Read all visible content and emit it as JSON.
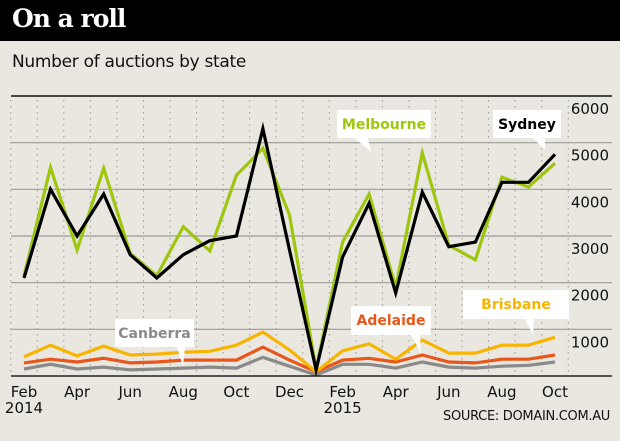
{
  "header": {
    "title": "On a roll"
  },
  "subtitle": "Number of auctions by state",
  "source": "SOURCE: DOMAIN.COM.AU",
  "chart_data": {
    "type": "line",
    "title": "Number of auctions by state",
    "xlabel": "",
    "ylabel": "",
    "ylim": [
      0,
      6000
    ],
    "yticks": [
      1000,
      2000,
      3000,
      4000,
      5000,
      6000
    ],
    "ytick_labels": [
      "1000",
      "2000",
      "3000",
      "4000",
      "5000",
      "6000"
    ],
    "x": [
      "Feb 2014",
      "Mar 2014",
      "Apr 2014",
      "May 2014",
      "Jun 2014",
      "Jul 2014",
      "Aug 2014",
      "Sep 2014",
      "Oct 2014",
      "Nov 2014",
      "Dec 2014",
      "Jan 2015",
      "Feb 2015",
      "Mar 2015",
      "Apr 2015",
      "May 2015",
      "Jun 2015",
      "Jul 2015",
      "Aug 2015",
      "Sep 2015",
      "Oct 2015"
    ],
    "xtick_labels": [
      {
        "index": 0,
        "line1": "Feb",
        "line2": "2014"
      },
      {
        "index": 2,
        "line1": "Apr",
        "line2": ""
      },
      {
        "index": 4,
        "line1": "Jun",
        "line2": ""
      },
      {
        "index": 6,
        "line1": "Aug",
        "line2": ""
      },
      {
        "index": 8,
        "line1": "Oct",
        "line2": ""
      },
      {
        "index": 10,
        "line1": "Dec",
        "line2": ""
      },
      {
        "index": 12,
        "line1": "Feb",
        "line2": "2015"
      },
      {
        "index": 14,
        "line1": "Apr",
        "line2": ""
      },
      {
        "index": 16,
        "line1": "Jun",
        "line2": ""
      },
      {
        "index": 18,
        "line1": "Aug",
        "line2": ""
      },
      {
        "index": 20,
        "line1": "Oct",
        "line2": ""
      }
    ],
    "grid": true,
    "series": [
      {
        "name": "Canberra",
        "color": "#8a8a8a",
        "values": [
          150,
          250,
          150,
          190,
          130,
          150,
          170,
          190,
          170,
          400,
          210,
          20,
          250,
          250,
          170,
          300,
          190,
          170,
          210,
          230,
          300
        ]
      },
      {
        "name": "Adelaide",
        "color": "#e8561a",
        "values": [
          280,
          360,
          300,
          380,
          280,
          300,
          340,
          340,
          340,
          620,
          340,
          90,
          340,
          380,
          300,
          450,
          300,
          280,
          360,
          360,
          450
        ]
      },
      {
        "name": "Brisbane",
        "color": "#f7b500",
        "values": [
          410,
          660,
          430,
          640,
          450,
          470,
          510,
          530,
          660,
          940,
          560,
          90,
          540,
          690,
          360,
          770,
          490,
          490,
          660,
          660,
          830
        ]
      },
      {
        "name": "Melbourne",
        "color": "#9ec60f",
        "values": [
          2150,
          4470,
          2700,
          4450,
          2630,
          2150,
          3200,
          2680,
          4300,
          4880,
          3450,
          150,
          2870,
          3900,
          1900,
          4780,
          2800,
          2490,
          4260,
          4050,
          4560
        ]
      },
      {
        "name": "Sydney",
        "color": "#000000",
        "values": [
          2100,
          4000,
          3000,
          3900,
          2600,
          2100,
          2600,
          2900,
          3000,
          5300,
          2700,
          130,
          2550,
          3700,
          1780,
          3940,
          2770,
          2870,
          4150,
          4150,
          4750
        ]
      }
    ],
    "annotations": [
      {
        "series": "Melbourne",
        "text": "Melbourne",
        "color": "#9ec60f",
        "point_index": 15
      },
      {
        "series": "Sydney",
        "text": "Sydney",
        "color": "#000000",
        "point_index": 20
      },
      {
        "series": "Canberra",
        "text": "Canberra",
        "color": "#8a8a8a",
        "point_index": 6
      },
      {
        "series": "Adelaide",
        "text": "Adelaide",
        "color": "#e8561a",
        "point_index": 15
      },
      {
        "series": "Brisbane",
        "text": "Brisbane",
        "color": "#f7b500",
        "point_index": 19
      }
    ]
  }
}
